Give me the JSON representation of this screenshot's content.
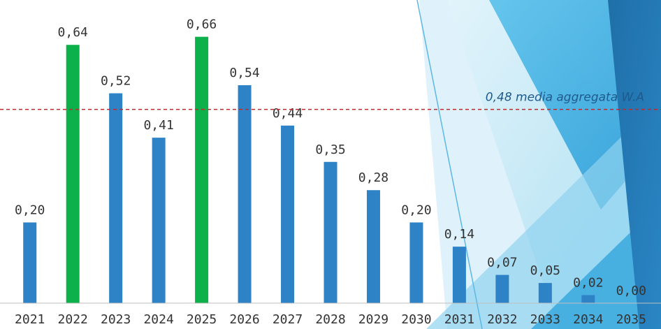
{
  "chart_data": {
    "type": "bar",
    "title": "",
    "xlabel": "",
    "ylabel": "",
    "categories": [
      "2021",
      "2022",
      "2023",
      "2024",
      "2025",
      "2026",
      "2027",
      "2028",
      "2029",
      "2030",
      "2031",
      "2032",
      "2033",
      "2034",
      "2035"
    ],
    "values": [
      0.2,
      0.64,
      0.52,
      0.41,
      0.66,
      0.54,
      0.44,
      0.35,
      0.28,
      0.2,
      0.14,
      0.07,
      0.05,
      0.02,
      0.0
    ],
    "value_labels": [
      "0,20",
      "0,64",
      "0,52",
      "0,41",
      "0,66",
      "0,54",
      "0,44",
      "0,35",
      "0,28",
      "0,20",
      "0,14",
      "0,07",
      "0,05",
      "0,02",
      "0,00"
    ],
    "highlighted_categories": [
      "2022",
      "2025"
    ],
    "ylim": [
      0,
      0.72
    ],
    "grid": false,
    "colors": {
      "default": "#2e83c6",
      "highlight": "#0db14b",
      "reference_line": "#c0282d"
    },
    "reference_line": {
      "value": 0.48,
      "label": "0,48 media aggregata W.A"
    }
  }
}
